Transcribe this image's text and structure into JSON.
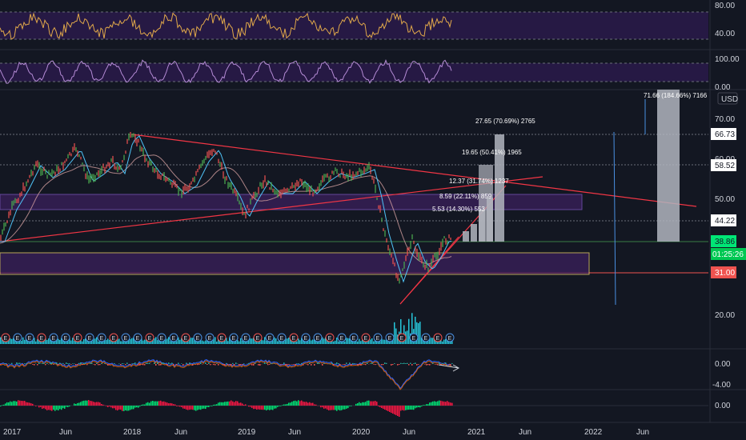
{
  "currency": "USD",
  "rsi_axis": [
    "80.00",
    "40.00"
  ],
  "stoch_axis": [
    "100.00",
    "0.00"
  ],
  "price_axis": [
    "70.00",
    "60.00",
    "50.00",
    "20.00"
  ],
  "macd_axis": [
    "0.00",
    "-4.00"
  ],
  "ao_axis": [
    "0.00"
  ],
  "price_tags": {
    "t1": {
      "text": "66.73",
      "bg": "#ffffff",
      "fg": "#131722"
    },
    "t2": {
      "text": "58.52",
      "bg": "#ffffff",
      "fg": "#131722"
    },
    "t3": {
      "text": "44.22",
      "bg": "#ffffff",
      "fg": "#131722"
    },
    "t4": {
      "text": "38.86",
      "bg": "#00e676",
      "fg": "#131722"
    },
    "t5": {
      "text": "01:25:26",
      "bg": "#00c853",
      "fg": "#ffffff"
    },
    "t6": {
      "text": "31.00",
      "bg": "#ef5350",
      "fg": "#ffffff"
    }
  },
  "projection_labels": [
    "71.66 (184.66%) 7166",
    "27.65 (70.69%) 2765",
    "19.65 (50.41%) 1965",
    "12.37 (31.74%) 1237",
    "8.59 (22.11%) 859",
    "5.53 (14.30%) 553"
  ],
  "x_axis": [
    "2017",
    "Jun",
    "2018",
    "Jun",
    "2019",
    "Jun",
    "2020",
    "Jun",
    "2021",
    "Jun",
    "2022",
    "Jun"
  ],
  "earnings_marker": "E",
  "colors": {
    "background": "#131722",
    "purple_zone": "#2a1a4a",
    "purple_border": "#7e57c2",
    "trend_red": "#f23645",
    "up": "#26a69a",
    "down": "#ef5350",
    "volume": "#26c6da",
    "projection_bar": "#b2b5be",
    "yellow_border": "#f0d56a"
  }
}
